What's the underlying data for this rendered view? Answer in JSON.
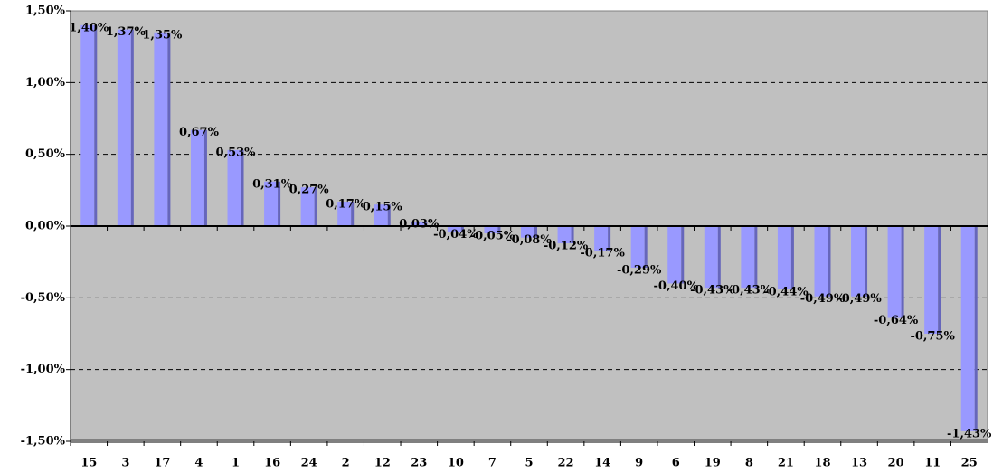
{
  "chart_data": {
    "type": "bar",
    "categories": [
      "15",
      "3",
      "17",
      "4",
      "1",
      "16",
      "24",
      "2",
      "12",
      "23",
      "10",
      "7",
      "5",
      "22",
      "14",
      "9",
      "6",
      "19",
      "8",
      "21",
      "18",
      "13",
      "20",
      "11",
      "25"
    ],
    "values": [
      1.4,
      1.37,
      1.35,
      0.67,
      0.53,
      0.31,
      0.27,
      0.17,
      0.15,
      0.03,
      -0.04,
      -0.05,
      -0.08,
      -0.12,
      -0.17,
      -0.29,
      -0.4,
      -0.43,
      -0.43,
      -0.44,
      -0.49,
      -0.49,
      -0.64,
      -0.75,
      -1.43
    ],
    "value_labels": [
      "1,40%",
      "1,37%",
      "1,35%",
      "0,67%",
      "0,53%",
      "0,31%",
      "0,27%",
      "0,17%",
      "0,15%",
      "0,03%",
      "-0,04%",
      "-0,05%",
      "-0,08%",
      "-0,12%",
      "-0,17%",
      "-0,29%",
      "-0,40%",
      "-0,43%",
      "-0,43%",
      "-0,44%",
      "-0,49%",
      "-0,49%",
      "-0,64%",
      "-0,75%",
      "-1,43%"
    ],
    "color": "#9999ff",
    "ylim": [
      -1.5,
      1.5
    ],
    "yticks": [
      {
        "value": -1.5,
        "label": "-1,50%"
      },
      {
        "value": -1.0,
        "label": "-1,00%"
      },
      {
        "value": -0.5,
        "label": "-0,50%"
      },
      {
        "value": 0,
        "label": "0,00%"
      },
      {
        "value": 0.5,
        "label": "0,50%"
      },
      {
        "value": 1.0,
        "label": "1,00%"
      },
      {
        "value": 1.5,
        "label": "1,50%"
      }
    ],
    "grid": true
  }
}
